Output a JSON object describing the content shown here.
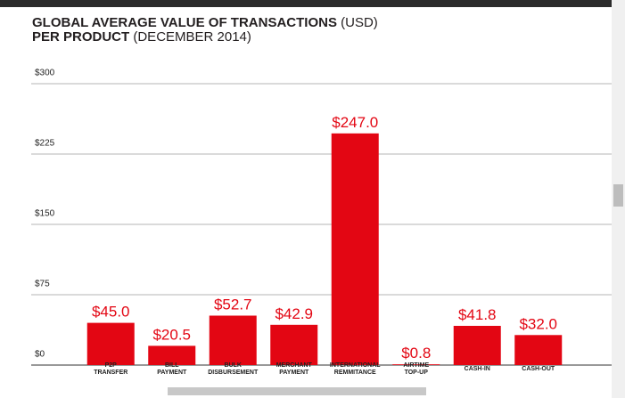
{
  "chart_data": {
    "type": "bar",
    "title_parts": [
      [
        "GLOBAL AVERAGE VALUE OF TRANSACTIONS",
        "(USD)"
      ],
      [
        "PER PRODUCT",
        "(DECEMBER 2014)"
      ]
    ],
    "categories": [
      "P2P TRANSFER",
      "BILL PAYMENT",
      "BULK DISBURSEMENT",
      "MERCHANT PAYMENT",
      "INTERNATIONAL REMMITANCE",
      "AIRTIME TOP-UP",
      "CASH-IN",
      "CASH-OUT"
    ],
    "values": [
      45.0,
      20.5,
      52.7,
      42.9,
      247.0,
      0.8,
      41.8,
      32.0
    ],
    "value_labels": [
      "$45.0",
      "$20.5",
      "$52.7",
      "$42.9",
      "$247.0",
      "$0.8",
      "$41.8",
      "$32.0"
    ],
    "color": "#e30613",
    "ylim": [
      0,
      300
    ],
    "yticks": [
      {
        "value": 0,
        "label": "$0"
      },
      {
        "value": 75,
        "label": "$75"
      },
      {
        "value": 150,
        "label": "$150"
      },
      {
        "value": 225,
        "label": "$225"
      },
      {
        "value": 300,
        "label": "$300"
      }
    ],
    "grid": true
  }
}
